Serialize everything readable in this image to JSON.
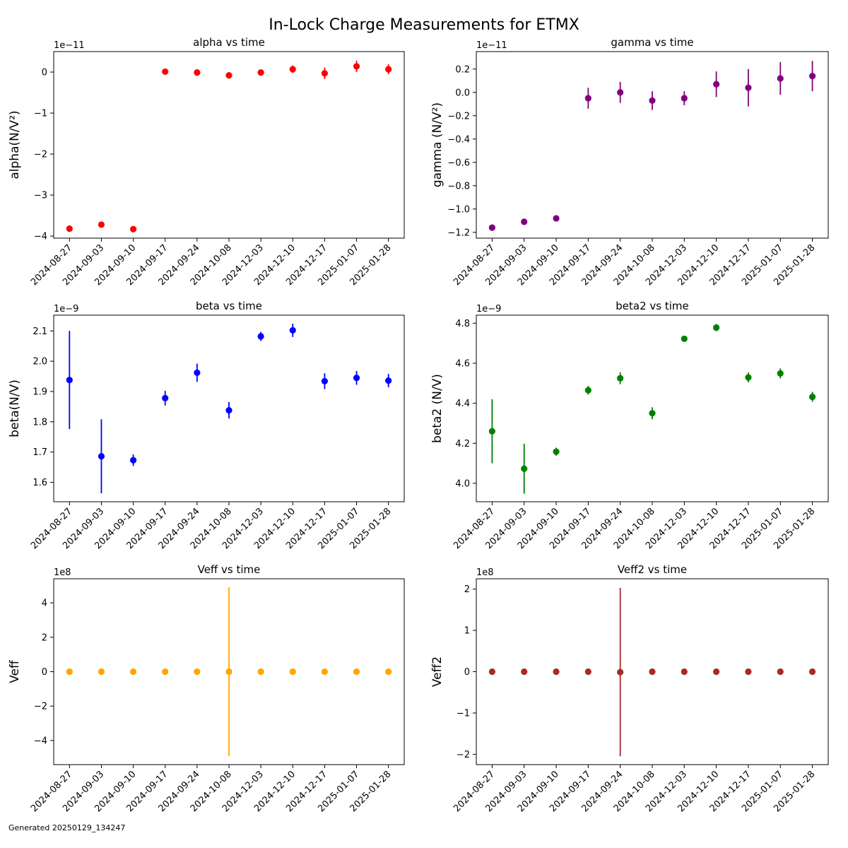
{
  "suptitle": "In-Lock Charge Measurements for ETMX",
  "footer": "Generated 20250129_134247",
  "chart_data": [
    {
      "type": "scatter",
      "title": "alpha vs time",
      "xlabel": "",
      "ylabel": "alpha(N/V²)",
      "color": "#ff0000",
      "x": [
        "2024-08-27",
        "2024-09-03",
        "2024-09-10",
        "2024-09-17",
        "2024-09-24",
        "2024-10-08",
        "2024-12-03",
        "2024-12-10",
        "2024-12-17",
        "2025-01-07",
        "2025-01-28"
      ],
      "y": [
        -3.82e-11,
        -3.72e-11,
        -3.83e-11,
        1e-13,
        -1e-13,
        -8e-13,
        -1e-13,
        7e-13,
        -3e-13,
        1.4e-12,
        7e-13
      ],
      "yerr": [
        3e-13,
        3e-13,
        3e-13,
        7e-13,
        8e-13,
        6e-13,
        6e-13,
        9e-13,
        1.4e-12,
        1.4e-12,
        1.2e-12
      ],
      "ylim": [
        -4.05e-11,
        5e-12
      ],
      "yticks": [
        -4e-11,
        -3e-11,
        -2e-11,
        -1e-11,
        0
      ],
      "ytick_labels": [
        "−4",
        "−3",
        "−2",
        "−1",
        "0"
      ],
      "offset_text": "1e−11"
    },
    {
      "type": "scatter",
      "title": "gamma vs time",
      "xlabel": "",
      "ylabel": "gamma (N/V²)",
      "color": "#800080",
      "x": [
        "2024-08-27",
        "2024-09-03",
        "2024-09-10",
        "2024-09-17",
        "2024-09-24",
        "2024-10-08",
        "2024-12-03",
        "2024-12-10",
        "2024-12-17",
        "2025-01-07",
        "2025-01-28"
      ],
      "y": [
        -1.16e-11,
        -1.11e-11,
        -1.08e-11,
        -5e-13,
        0.0,
        -7e-13,
        -5e-13,
        7e-13,
        4e-13,
        1.2e-12,
        1.4e-12
      ],
      "yerr": [
        2e-13,
        2e-13,
        2e-13,
        9e-13,
        9e-13,
        8e-13,
        6e-13,
        1.1e-12,
        1.6e-12,
        1.4e-12,
        1.3e-12
      ],
      "ylim": [
        -1.25e-11,
        3.5e-12
      ],
      "yticks": [
        -1.2e-11,
        -1e-11,
        -8e-12,
        -6e-12,
        -4e-12,
        -2e-12,
        0,
        2e-12
      ],
      "ytick_labels": [
        "−1.2",
        "−1.0",
        "−0.8",
        "−0.6",
        "−0.4",
        "−0.2",
        "0.0",
        "0.2"
      ],
      "offset_text": "1e−11"
    },
    {
      "type": "scatter",
      "title": "beta vs time",
      "xlabel": "",
      "ylabel": "beta(N/V)",
      "color": "#0000ff",
      "x": [
        "2024-08-27",
        "2024-09-03",
        "2024-09-10",
        "2024-09-17",
        "2024-09-24",
        "2024-10-08",
        "2024-12-03",
        "2024-12-10",
        "2024-12-17",
        "2025-01-07",
        "2025-01-28"
      ],
      "y": [
        1.938e-09,
        1.686e-09,
        1.673e-09,
        1.878e-09,
        1.962e-09,
        1.838e-09,
        2.082e-09,
        2.102e-09,
        1.934e-09,
        1.945e-09,
        1.936e-09
      ],
      "yerr": [
        1.62e-10,
        1.22e-10,
        1.9e-11,
        2.4e-11,
        3e-11,
        2.7e-11,
        1.5e-11,
        2.2e-11,
        2.6e-11,
        2.3e-11,
        2.2e-11
      ],
      "ylim": [
        1.536e-09,
        2.152e-09
      ],
      "yticks": [
        1.6e-09,
        1.7e-09,
        1.8e-09,
        1.9e-09,
        2e-09,
        2.1e-09
      ],
      "ytick_labels": [
        "1.6",
        "1.7",
        "1.8",
        "1.9",
        "2.0",
        "2.1"
      ],
      "offset_text": "1e−9"
    },
    {
      "type": "scatter",
      "title": "beta2 vs time",
      "xlabel": "",
      "ylabel": "beta2 (N/V)",
      "color": "#008000",
      "x": [
        "2024-08-27",
        "2024-09-03",
        "2024-09-10",
        "2024-09-17",
        "2024-09-24",
        "2024-10-08",
        "2024-12-03",
        "2024-12-10",
        "2024-12-17",
        "2025-01-07",
        "2025-01-28"
      ],
      "y": [
        4.26e-09,
        4.073e-09,
        4.158e-09,
        4.465e-09,
        4.525e-09,
        4.35e-09,
        4.722e-09,
        4.778e-09,
        4.529e-09,
        4.549e-09,
        4.432e-09
      ],
      "yerr": [
        1.6e-10,
        1.25e-10,
        2e-11,
        2.2e-11,
        3e-11,
        3e-11,
        1.2e-11,
        1.8e-11,
        2.5e-11,
        2.5e-11,
        2.5e-11
      ],
      "ylim": [
        3.908e-09,
        4.84e-09
      ],
      "yticks": [
        4e-09,
        4.2e-09,
        4.4e-09,
        4.6e-09,
        4.8e-09
      ],
      "ytick_labels": [
        "4.0",
        "4.2",
        "4.4",
        "4.6",
        "4.8"
      ],
      "offset_text": "1e−9"
    },
    {
      "type": "scatter",
      "title": "Veff vs time",
      "xlabel": "",
      "ylabel": "Veff",
      "color": "#ffa500",
      "x": [
        "2024-08-27",
        "2024-09-03",
        "2024-09-10",
        "2024-09-17",
        "2024-09-24",
        "2024-10-08",
        "2024-12-03",
        "2024-12-10",
        "2024-12-17",
        "2025-01-07",
        "2025-01-28"
      ],
      "y": [
        0,
        0,
        0,
        0,
        0,
        0,
        0,
        0,
        0,
        0,
        0
      ],
      "yerr": [
        0,
        0,
        0,
        0,
        0,
        490000000.0,
        0,
        0,
        0,
        0,
        0
      ],
      "ylim": [
        -540000000.0,
        540000000.0
      ],
      "yticks": [
        -400000000.0,
        -200000000.0,
        0,
        200000000.0,
        400000000.0
      ],
      "ytick_labels": [
        "−4",
        "−2",
        "0",
        "2",
        "4"
      ],
      "offset_text": "1e8"
    },
    {
      "type": "scatter",
      "title": "Veff2 vs time",
      "xlabel": "",
      "ylabel": "Veff2",
      "color": "#a52a2a",
      "x": [
        "2024-08-27",
        "2024-09-03",
        "2024-09-10",
        "2024-09-17",
        "2024-09-24",
        "2024-10-08",
        "2024-12-03",
        "2024-12-10",
        "2024-12-17",
        "2025-01-07",
        "2025-01-28"
      ],
      "y": [
        0,
        0,
        0,
        0,
        -1000000.0,
        0,
        0,
        0,
        0,
        0,
        0
      ],
      "yerr": [
        0,
        0,
        0,
        0,
        204000000.0,
        0,
        0,
        0,
        0,
        0,
        0
      ],
      "ylim": [
        -225000000.0,
        225000000.0
      ],
      "yticks": [
        -200000000.0,
        -100000000.0,
        0,
        100000000.0,
        200000000.0
      ],
      "ytick_labels": [
        "−2",
        "−1",
        "0",
        "1",
        "2"
      ],
      "offset_text": "1e8"
    }
  ]
}
